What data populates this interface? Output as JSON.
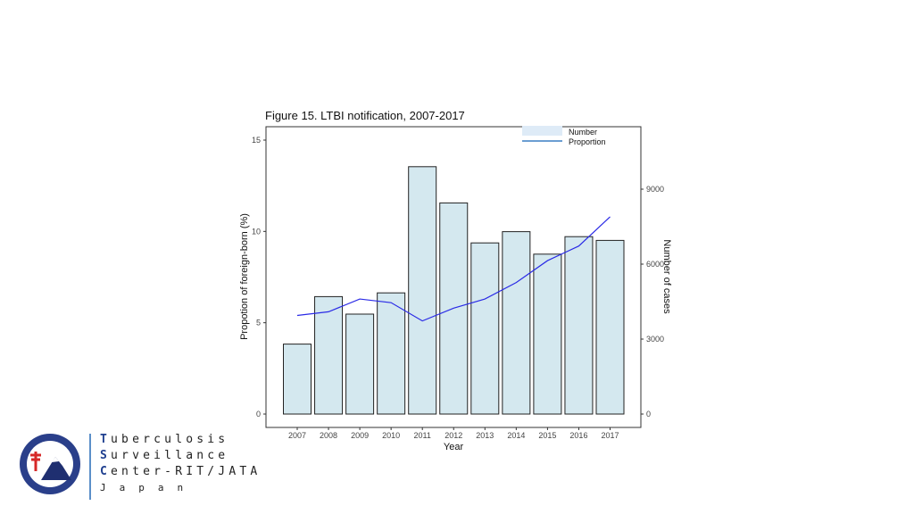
{
  "chart_data": {
    "type": "bar",
    "title": "Figure 15. LTBI notification, 2007-2017",
    "xlabel": "Year",
    "ylabel_left": "Propotion of foreign-born (%)",
    "ylabel_right": "Number of cases",
    "categories": [
      "2007",
      "2008",
      "2009",
      "2010",
      "2011",
      "2012",
      "2013",
      "2014",
      "2015",
      "2016",
      "2017"
    ],
    "series": [
      {
        "name": "Number",
        "type": "bar",
        "axis": "right",
        "values": [
          2800,
          4700,
          4000,
          4850,
          9900,
          8450,
          6850,
          7300,
          6400,
          7100,
          6950
        ]
      },
      {
        "name": "Proportion",
        "type": "line",
        "axis": "left",
        "values": [
          5.4,
          5.6,
          6.3,
          6.1,
          5.1,
          5.8,
          6.3,
          7.2,
          8.4,
          9.2,
          10.8
        ]
      }
    ],
    "ylim_left": [
      0,
      15
    ],
    "yticks_left": [
      0,
      5,
      10,
      15
    ],
    "ylim_right": [
      0,
      11040
    ],
    "yticks_right": [
      0,
      3000,
      6000,
      9000
    ],
    "legend_position": "top-right",
    "colors": {
      "bar_fill": "#d4e8ef",
      "bar_stroke": "#222222",
      "line": "#2a2ae6",
      "legend_bar": "#deebf7",
      "legend_line": "#3a7fc4"
    }
  },
  "branding": {
    "line1": {
      "initial": "T",
      "rest": "uberculosis"
    },
    "line2": {
      "initial": "S",
      "rest": "urveillance"
    },
    "line3": {
      "initial": "C",
      "rest": "enter-RIT/JATA"
    },
    "country": "Japan"
  }
}
